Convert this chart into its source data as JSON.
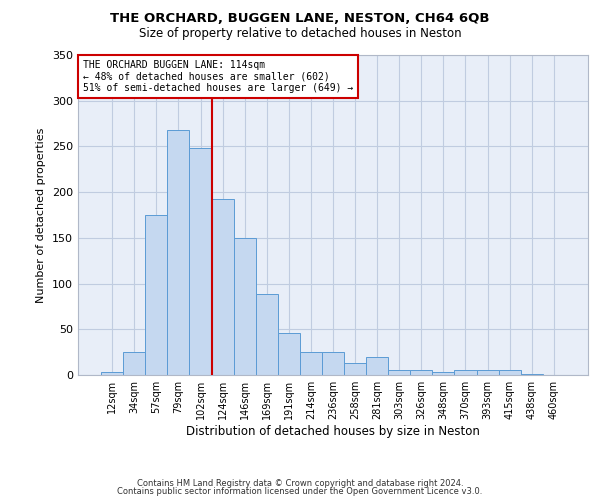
{
  "title": "THE ORCHARD, BUGGEN LANE, NESTON, CH64 6QB",
  "subtitle": "Size of property relative to detached houses in Neston",
  "xlabel": "Distribution of detached houses by size in Neston",
  "ylabel": "Number of detached properties",
  "bin_labels": [
    "12sqm",
    "34sqm",
    "57sqm",
    "79sqm",
    "102sqm",
    "124sqm",
    "146sqm",
    "169sqm",
    "191sqm",
    "214sqm",
    "236sqm",
    "258sqm",
    "281sqm",
    "303sqm",
    "326sqm",
    "348sqm",
    "370sqm",
    "393sqm",
    "415sqm",
    "438sqm",
    "460sqm"
  ],
  "bar_values": [
    3,
    25,
    175,
    268,
    248,
    193,
    150,
    89,
    46,
    25,
    25,
    13,
    20,
    6,
    6,
    3,
    5,
    5,
    5,
    1,
    0
  ],
  "bar_color": "#c5d8f0",
  "bar_edge_color": "#5b9bd5",
  "vline_x": 4.5,
  "vline_color": "#cc0000",
  "annotation_title": "THE ORCHARD BUGGEN LANE: 114sqm",
  "annotation_line1": "← 48% of detached houses are smaller (602)",
  "annotation_line2": "51% of semi-detached houses are larger (649) →",
  "annotation_box_color": "#ffffff",
  "annotation_box_edge": "#cc0000",
  "ylim": [
    0,
    350
  ],
  "yticks": [
    0,
    50,
    100,
    150,
    200,
    250,
    300,
    350
  ],
  "bg_color": "#e8eef8",
  "footer1": "Contains HM Land Registry data © Crown copyright and database right 2024.",
  "footer2": "Contains public sector information licensed under the Open Government Licence v3.0."
}
